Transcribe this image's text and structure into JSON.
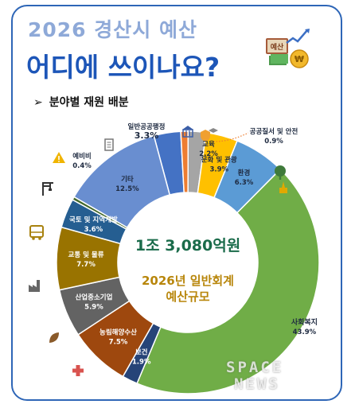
{
  "header": {
    "subtitle": "2026 경산시 예산",
    "title": "어디에 쓰이나요?",
    "section_title": "분야별 재원 배분",
    "logo_label": "예산"
  },
  "center": {
    "total": "1조 3,080억원",
    "caption_line1": "2026년 일반회계",
    "caption_line2": "예산규모"
  },
  "watermark": {
    "line1": "SPACE",
    "line2": "NEWS"
  },
  "chart_data": {
    "type": "pie",
    "subtype": "donut",
    "title": "분야별 재원 배분",
    "unit": "%",
    "slices": [
      {
        "name": "일반공공행정",
        "value": 3.3,
        "color": "#4472c4",
        "icon": "government-building-icon"
      },
      {
        "name": "공공질서 및 안전",
        "value": 0.9,
        "color": "#ed7d31",
        "icon": "shield-icon"
      },
      {
        "name": "교육",
        "value": 2.2,
        "color": "#a5a5a5",
        "icon": "graduation-cap-icon"
      },
      {
        "name": "문화 및 관광",
        "value": 3.9,
        "color": "#ffc000",
        "icon": "monument-icon"
      },
      {
        "name": "환경",
        "value": 6.3,
        "color": "#5b9bd5",
        "icon": "tree-icon"
      },
      {
        "name": "사회복지",
        "value": 43.9,
        "color": "#70ad47",
        "icon": "none"
      },
      {
        "name": "보건",
        "value": 1.9,
        "color": "#264478",
        "icon": "medical-cross-icon"
      },
      {
        "name": "농림해양수산",
        "value": 7.5,
        "color": "#9e480e",
        "icon": "leaf-icon"
      },
      {
        "name": "산업중소기업",
        "value": 5.9,
        "color": "#636363",
        "icon": "factory-icon"
      },
      {
        "name": "교통 및 물류",
        "value": 7.7,
        "color": "#997300",
        "icon": "bus-icon"
      },
      {
        "name": "국토 및 지역개발",
        "value": 3.6,
        "color": "#255e91",
        "icon": "crane-icon"
      },
      {
        "name": "예비비",
        "value": 0.4,
        "color": "#43682b",
        "icon": "warning-icon"
      },
      {
        "name": "기타",
        "value": 12.5,
        "color": "#698ed0",
        "icon": "document-icon"
      }
    ]
  }
}
